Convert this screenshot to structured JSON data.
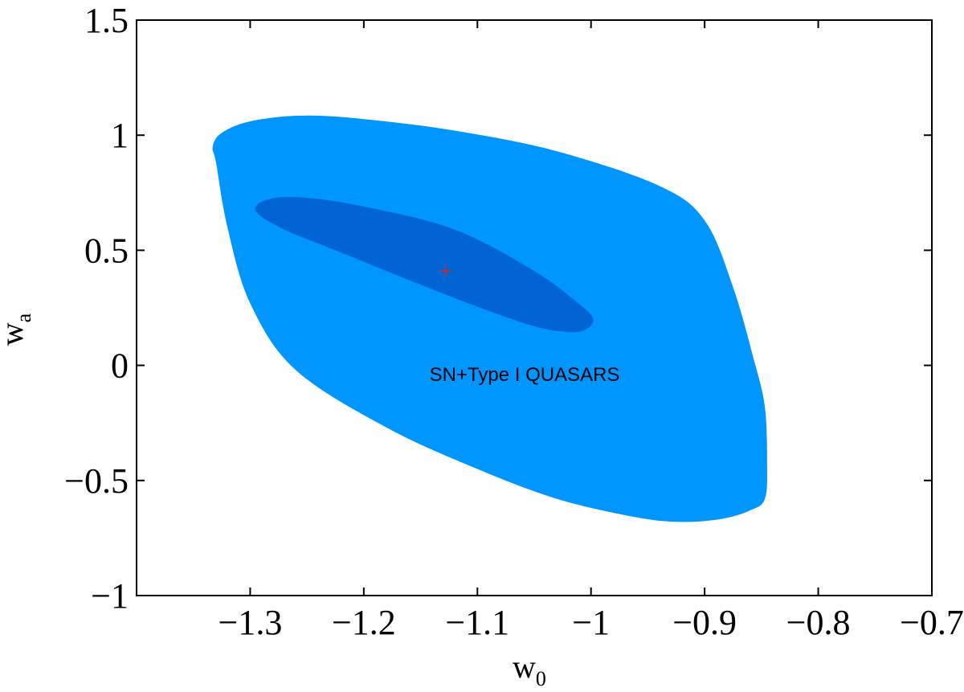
{
  "chart_data": {
    "type": "contour",
    "xlabel": "w",
    "xlabel_sub": "0",
    "ylabel": "w",
    "ylabel_sub": "a",
    "xlim": [
      -1.4,
      -0.7
    ],
    "ylim": [
      -1.0,
      1.5
    ],
    "x_ticks": [
      -1.3,
      -1.2,
      -1.1,
      -1.0,
      -0.9,
      -0.8,
      -0.7
    ],
    "x_tick_labels": [
      "−1.3",
      "−1.2",
      "−1.1",
      "−1",
      "−0.9",
      "−0.8",
      "−0.7"
    ],
    "y_ticks": [
      -1.0,
      -0.5,
      0.0,
      0.5,
      1.0,
      1.5
    ],
    "y_tick_labels": [
      "−1",
      "−0.5",
      "0",
      "0.5",
      "1",
      "1.5"
    ],
    "grid": false,
    "annotation": {
      "text": "SN+Type I QUASARS",
      "x": -1.128,
      "y": -0.04
    },
    "best_fit": {
      "x": -1.128,
      "y": 0.41,
      "marker": "+",
      "color": "#d62728"
    },
    "contours": [
      {
        "level": "outer",
        "color": "#0096ff",
        "points": [
          [
            -1.33,
            0.88
          ],
          [
            -1.333,
            0.95
          ],
          [
            -1.325,
            1.01
          ],
          [
            -1.3,
            1.06
          ],
          [
            -1.255,
            1.085
          ],
          [
            -1.2,
            1.07
          ],
          [
            -1.12,
            1.02
          ],
          [
            -1.03,
            0.93
          ],
          [
            -0.94,
            0.78
          ],
          [
            -0.9,
            0.63
          ],
          [
            -0.875,
            0.34
          ],
          [
            -0.857,
            0.03
          ],
          [
            -0.847,
            -0.18
          ],
          [
            -0.845,
            -0.43
          ],
          [
            -0.847,
            -0.58
          ],
          [
            -0.86,
            -0.63
          ],
          [
            -0.885,
            -0.667
          ],
          [
            -0.92,
            -0.68
          ],
          [
            -0.96,
            -0.66
          ],
          [
            -1.03,
            -0.58
          ],
          [
            -1.1,
            -0.45
          ],
          [
            -1.18,
            -0.27
          ],
          [
            -1.26,
            -0.02
          ],
          [
            -1.3,
            0.27
          ],
          [
            -1.32,
            0.6
          ]
        ]
      },
      {
        "level": "inner",
        "color": "#0064d2",
        "points": [
          [
            -1.295,
            0.67
          ],
          [
            -1.285,
            0.72
          ],
          [
            -1.255,
            0.73
          ],
          [
            -1.2,
            0.69
          ],
          [
            -1.12,
            0.59
          ],
          [
            -1.05,
            0.41
          ],
          [
            -1.01,
            0.265
          ],
          [
            -0.998,
            0.2
          ],
          [
            -1.005,
            0.155
          ],
          [
            -1.02,
            0.145
          ],
          [
            -1.05,
            0.17
          ],
          [
            -1.1,
            0.255
          ],
          [
            -1.16,
            0.37
          ],
          [
            -1.225,
            0.5
          ],
          [
            -1.27,
            0.59
          ]
        ]
      }
    ]
  }
}
